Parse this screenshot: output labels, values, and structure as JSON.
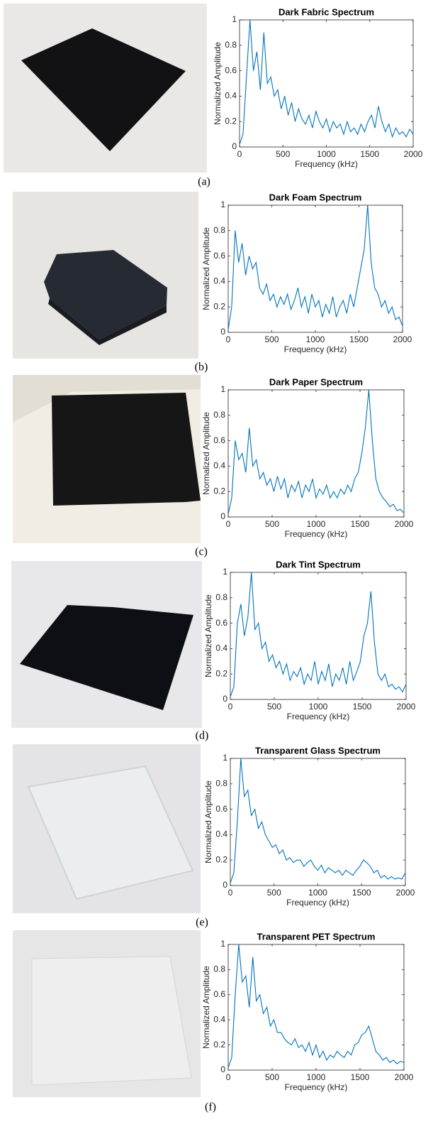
{
  "chart_data": [
    {
      "type": "line",
      "title": "Dark Fabric Spectrum",
      "caption": "(a)",
      "xlabel": "Frequency (kHz)",
      "ylabel": "Normalized Amplitude",
      "color": "#0072bd",
      "xlim": [
        0,
        2000
      ],
      "ylim": [
        0,
        1
      ],
      "xticks": [
        0,
        500,
        1000,
        1500,
        2000
      ],
      "yticks": [
        0,
        0.2,
        0.4,
        0.6,
        0.8,
        1
      ],
      "x": [
        0,
        40,
        80,
        120,
        160,
        200,
        240,
        280,
        320,
        360,
        400,
        440,
        480,
        520,
        560,
        600,
        640,
        680,
        720,
        760,
        800,
        840,
        880,
        920,
        960,
        1000,
        1040,
        1080,
        1120,
        1160,
        1200,
        1240,
        1280,
        1320,
        1360,
        1400,
        1440,
        1480,
        1520,
        1560,
        1600,
        1640,
        1680,
        1720,
        1760,
        1800,
        1840,
        1880,
        1920,
        1960,
        2000
      ],
      "values": [
        0.02,
        0.1,
        0.55,
        1.0,
        0.6,
        0.75,
        0.45,
        0.9,
        0.5,
        0.55,
        0.4,
        0.45,
        0.3,
        0.4,
        0.25,
        0.35,
        0.2,
        0.3,
        0.22,
        0.18,
        0.25,
        0.15,
        0.28,
        0.2,
        0.15,
        0.22,
        0.12,
        0.2,
        0.15,
        0.18,
        0.1,
        0.2,
        0.12,
        0.15,
        0.1,
        0.18,
        0.12,
        0.2,
        0.25,
        0.15,
        0.32,
        0.2,
        0.12,
        0.18,
        0.08,
        0.15,
        0.1,
        0.12,
        0.08,
        0.14,
        0.1
      ]
    },
    {
      "type": "line",
      "title": "Dark Foam Spectrum",
      "caption": "(b)",
      "xlabel": "Frequency (kHz)",
      "ylabel": "Normalized Amplitude",
      "color": "#0072bd",
      "xlim": [
        0,
        2000
      ],
      "ylim": [
        0,
        1
      ],
      "xticks": [
        0,
        500,
        1000,
        1500,
        2000
      ],
      "yticks": [
        0,
        0.2,
        0.4,
        0.6,
        0.8,
        1
      ],
      "x": [
        0,
        40,
        80,
        120,
        160,
        200,
        240,
        280,
        320,
        360,
        400,
        440,
        480,
        520,
        560,
        600,
        640,
        680,
        720,
        760,
        800,
        840,
        880,
        920,
        960,
        1000,
        1040,
        1080,
        1120,
        1160,
        1200,
        1240,
        1280,
        1320,
        1360,
        1400,
        1440,
        1480,
        1520,
        1560,
        1600,
        1640,
        1680,
        1720,
        1760,
        1800,
        1840,
        1880,
        1920,
        1960,
        2000
      ],
      "values": [
        0.02,
        0.2,
        0.8,
        0.55,
        0.7,
        0.45,
        0.6,
        0.5,
        0.55,
        0.35,
        0.3,
        0.38,
        0.25,
        0.3,
        0.2,
        0.28,
        0.22,
        0.3,
        0.18,
        0.25,
        0.35,
        0.2,
        0.28,
        0.15,
        0.3,
        0.2,
        0.25,
        0.12,
        0.22,
        0.15,
        0.28,
        0.12,
        0.2,
        0.25,
        0.15,
        0.3,
        0.2,
        0.35,
        0.5,
        0.65,
        1.0,
        0.55,
        0.35,
        0.3,
        0.2,
        0.25,
        0.15,
        0.2,
        0.1,
        0.12,
        0.05
      ]
    },
    {
      "type": "line",
      "title": "Dark Paper Spectrum",
      "caption": "(c)",
      "xlabel": "Frequency (kHz)",
      "ylabel": "Normalized Amplitude",
      "color": "#0072bd",
      "xlim": [
        0,
        2000
      ],
      "ylim": [
        0,
        1
      ],
      "xticks": [
        0,
        500,
        1000,
        1500,
        2000
      ],
      "yticks": [
        0,
        0.2,
        0.4,
        0.6,
        0.8,
        1
      ],
      "x": [
        0,
        40,
        80,
        120,
        160,
        200,
        240,
        280,
        320,
        360,
        400,
        440,
        480,
        520,
        560,
        600,
        640,
        680,
        720,
        760,
        800,
        840,
        880,
        920,
        960,
        1000,
        1040,
        1080,
        1120,
        1160,
        1200,
        1240,
        1280,
        1320,
        1360,
        1400,
        1440,
        1480,
        1520,
        1560,
        1600,
        1640,
        1680,
        1720,
        1760,
        1800,
        1840,
        1880,
        1920,
        1960,
        2000
      ],
      "values": [
        0.02,
        0.15,
        0.6,
        0.45,
        0.5,
        0.35,
        0.7,
        0.4,
        0.45,
        0.3,
        0.35,
        0.25,
        0.3,
        0.2,
        0.32,
        0.22,
        0.3,
        0.15,
        0.25,
        0.2,
        0.28,
        0.15,
        0.25,
        0.2,
        0.3,
        0.15,
        0.22,
        0.18,
        0.25,
        0.15,
        0.2,
        0.15,
        0.22,
        0.18,
        0.25,
        0.2,
        0.3,
        0.35,
        0.5,
        0.7,
        1.0,
        0.6,
        0.3,
        0.2,
        0.15,
        0.12,
        0.08,
        0.1,
        0.05,
        0.06,
        0.03
      ]
    },
    {
      "type": "line",
      "title": "Dark Tint Spectrum",
      "caption": "(d)",
      "xlabel": "Frequency (kHz)",
      "ylabel": "Normalized Amplitude",
      "color": "#0072bd",
      "xlim": [
        0,
        2000
      ],
      "ylim": [
        0,
        1
      ],
      "xticks": [
        0,
        500,
        1000,
        1500,
        2000
      ],
      "yticks": [
        0,
        0.2,
        0.4,
        0.6,
        0.8,
        1
      ],
      "x": [
        0,
        40,
        80,
        120,
        160,
        200,
        240,
        280,
        320,
        360,
        400,
        440,
        480,
        520,
        560,
        600,
        640,
        680,
        720,
        760,
        800,
        840,
        880,
        920,
        960,
        1000,
        1040,
        1080,
        1120,
        1160,
        1200,
        1240,
        1280,
        1320,
        1360,
        1400,
        1440,
        1480,
        1520,
        1560,
        1600,
        1640,
        1680,
        1720,
        1760,
        1800,
        1840,
        1880,
        1920,
        1960,
        2000
      ],
      "values": [
        0.02,
        0.1,
        0.6,
        0.75,
        0.5,
        0.65,
        1.0,
        0.55,
        0.6,
        0.4,
        0.45,
        0.3,
        0.35,
        0.25,
        0.3,
        0.2,
        0.28,
        0.15,
        0.22,
        0.18,
        0.25,
        0.12,
        0.2,
        0.15,
        0.3,
        0.12,
        0.22,
        0.15,
        0.28,
        0.1,
        0.2,
        0.15,
        0.25,
        0.12,
        0.3,
        0.15,
        0.22,
        0.3,
        0.5,
        0.6,
        0.85,
        0.45,
        0.2,
        0.15,
        0.2,
        0.1,
        0.12,
        0.08,
        0.1,
        0.06,
        0.12
      ]
    },
    {
      "type": "line",
      "title": "Transparent Glass Spectrum",
      "caption": "(e)",
      "xlabel": "Frequency (kHz)",
      "ylabel": "Normalized Amplitude",
      "color": "#0072bd",
      "xlim": [
        0,
        2000
      ],
      "ylim": [
        0,
        1
      ],
      "xticks": [
        0,
        500,
        1000,
        1500,
        2000
      ],
      "yticks": [
        0,
        0.2,
        0.4,
        0.6,
        0.8,
        1
      ],
      "x": [
        0,
        40,
        80,
        120,
        160,
        200,
        240,
        280,
        320,
        360,
        400,
        440,
        480,
        520,
        560,
        600,
        640,
        680,
        720,
        760,
        800,
        840,
        880,
        920,
        960,
        1000,
        1040,
        1080,
        1120,
        1160,
        1200,
        1240,
        1280,
        1320,
        1360,
        1400,
        1440,
        1480,
        1520,
        1560,
        1600,
        1640,
        1680,
        1720,
        1760,
        1800,
        1840,
        1880,
        1920,
        1960,
        2000
      ],
      "values": [
        0.02,
        0.1,
        0.5,
        1.0,
        0.7,
        0.75,
        0.55,
        0.6,
        0.45,
        0.5,
        0.4,
        0.35,
        0.3,
        0.32,
        0.25,
        0.28,
        0.2,
        0.22,
        0.18,
        0.2,
        0.2,
        0.15,
        0.18,
        0.2,
        0.15,
        0.12,
        0.16,
        0.1,
        0.14,
        0.12,
        0.1,
        0.12,
        0.08,
        0.12,
        0.1,
        0.08,
        0.12,
        0.15,
        0.2,
        0.18,
        0.15,
        0.1,
        0.12,
        0.06,
        0.08,
        0.05,
        0.07,
        0.05,
        0.06,
        0.05,
        0.1
      ]
    },
    {
      "type": "line",
      "title": "Transparent PET Spectrum",
      "caption": "(f)",
      "xlabel": "Frequency (kHz)",
      "ylabel": "Normalized Amplitude",
      "color": "#0072bd",
      "xlim": [
        0,
        2000
      ],
      "ylim": [
        0,
        1
      ],
      "xticks": [
        0,
        500,
        1000,
        1500,
        2000
      ],
      "yticks": [
        0,
        0.2,
        0.4,
        0.6,
        0.8,
        1
      ],
      "x": [
        0,
        40,
        80,
        120,
        160,
        200,
        240,
        280,
        320,
        360,
        400,
        440,
        480,
        520,
        560,
        600,
        640,
        680,
        720,
        760,
        800,
        840,
        880,
        920,
        960,
        1000,
        1040,
        1080,
        1120,
        1160,
        1200,
        1240,
        1280,
        1320,
        1360,
        1400,
        1440,
        1480,
        1520,
        1560,
        1600,
        1640,
        1680,
        1720,
        1760,
        1800,
        1840,
        1880,
        1920,
        1960,
        2000
      ],
      "values": [
        0.02,
        0.1,
        0.6,
        1.0,
        0.7,
        0.75,
        0.5,
        0.9,
        0.55,
        0.6,
        0.45,
        0.5,
        0.35,
        0.4,
        0.3,
        0.3,
        0.25,
        0.22,
        0.2,
        0.25,
        0.18,
        0.2,
        0.15,
        0.22,
        0.12,
        0.2,
        0.1,
        0.15,
        0.08,
        0.12,
        0.1,
        0.15,
        0.12,
        0.1,
        0.15,
        0.12,
        0.2,
        0.22,
        0.28,
        0.3,
        0.35,
        0.25,
        0.15,
        0.12,
        0.08,
        0.1,
        0.06,
        0.08,
        0.05,
        0.07,
        0.06
      ]
    }
  ]
}
